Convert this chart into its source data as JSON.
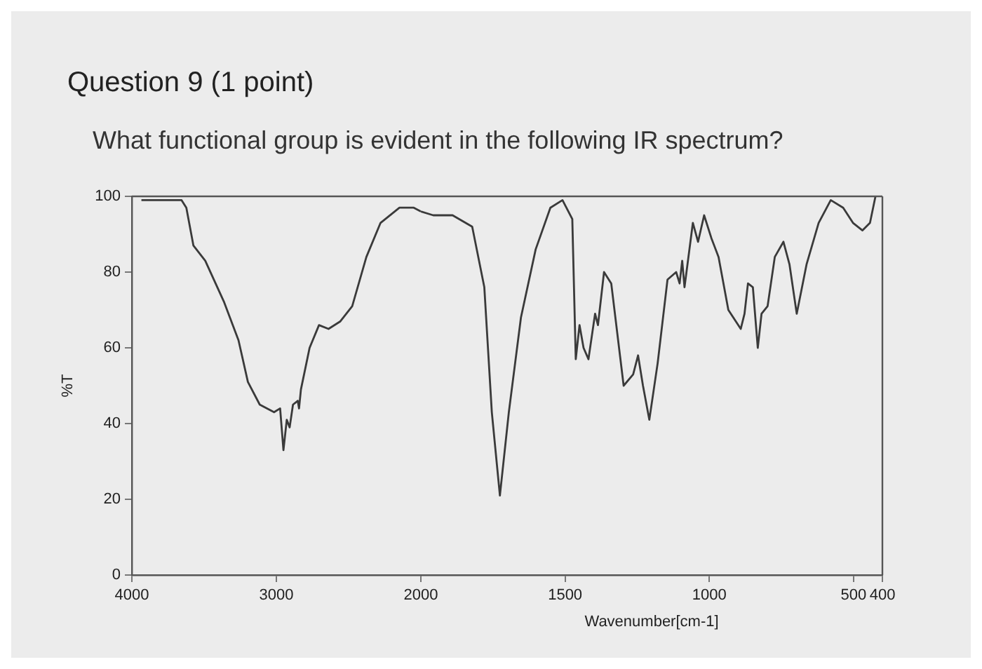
{
  "chart_data": [
    {
      "type": "line",
      "title": "Question 9 (1 point)",
      "subtitle": "What functional group is evident in the following IR spectrum?",
      "ylabel": "%T",
      "xlim": [
        4000,
        2000
      ],
      "ylim": [
        0,
        100
      ],
      "xticks": [
        4000,
        3000,
        2000
      ],
      "yticks": [
        0,
        20,
        40,
        60,
        80,
        100
      ],
      "grid": false,
      "legend": false,
      "marker": "none",
      "line_style": "solid",
      "series": [
        {
          "color": "#3a3a3a",
          "x": [
            3934,
            3656,
            3623,
            3574,
            3492,
            3361,
            3262,
            3197,
            3115,
            3016,
            2974,
            2951,
            2928,
            2908,
            2885,
            2852,
            2843,
            2830,
            2770,
            2705,
            2639,
            2557,
            2475,
            2377,
            2279,
            2148,
            2049,
            2000
          ],
          "values": [
            99,
            99,
            97,
            87,
            83,
            72,
            62,
            51,
            45,
            43,
            44,
            33,
            41,
            39,
            45,
            46,
            44,
            49,
            60,
            66,
            65,
            67,
            71,
            84,
            93,
            97,
            97,
            96
          ]
        }
      ]
    },
    {
      "type": "line",
      "xlabel": "Wavenumber[cm-1]",
      "xlim": [
        2000,
        400
      ],
      "ylim": [
        0,
        100
      ],
      "xticks": [
        1500,
        1000,
        500,
        400
      ],
      "yticks": [
        0,
        20,
        40,
        60,
        80,
        100
      ],
      "tick_labels": "x",
      "grid": false,
      "legend": false,
      "marker": "none",
      "line_style": "solid",
      "series": [
        {
          "color": "#3a3a3a",
          "x": [
            2000,
            1957,
            1890,
            1822,
            1780,
            1754,
            1726,
            1695,
            1653,
            1602,
            1551,
            1509,
            1475,
            1463,
            1450,
            1436,
            1419,
            1396,
            1386,
            1365,
            1340,
            1297,
            1264,
            1247,
            1230,
            1208,
            1179,
            1145,
            1115,
            1103,
            1094,
            1086,
            1057,
            1039,
            1018,
            993,
            968,
            934,
            891,
            878,
            866,
            849,
            832,
            819,
            798,
            773,
            743,
            722,
            697,
            663,
            621,
            579,
            536,
            502,
            469,
            443,
            424
          ],
          "values": [
            96,
            95,
            95,
            92,
            76,
            43,
            21,
            43,
            68,
            86,
            97,
            99,
            94,
            57,
            66,
            60,
            57,
            69,
            66,
            80,
            77,
            50,
            53,
            58,
            50,
            41,
            56,
            78,
            80,
            77,
            83,
            76,
            93,
            88,
            95,
            89,
            84,
            70,
            65,
            69,
            77,
            76,
            60,
            69,
            71,
            84,
            88,
            82,
            69,
            82,
            93,
            99,
            97,
            93,
            91,
            93,
            100
          ]
        }
      ]
    }
  ]
}
